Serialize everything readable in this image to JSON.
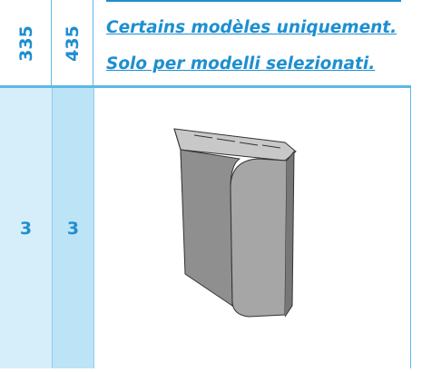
{
  "header": {
    "columns": [
      "335",
      "435"
    ],
    "notes": [
      "Certains modèles uniquement.",
      "Solo per modelli selezionati."
    ]
  },
  "table": {
    "rows": [
      [
        "3",
        "3"
      ]
    ]
  }
}
